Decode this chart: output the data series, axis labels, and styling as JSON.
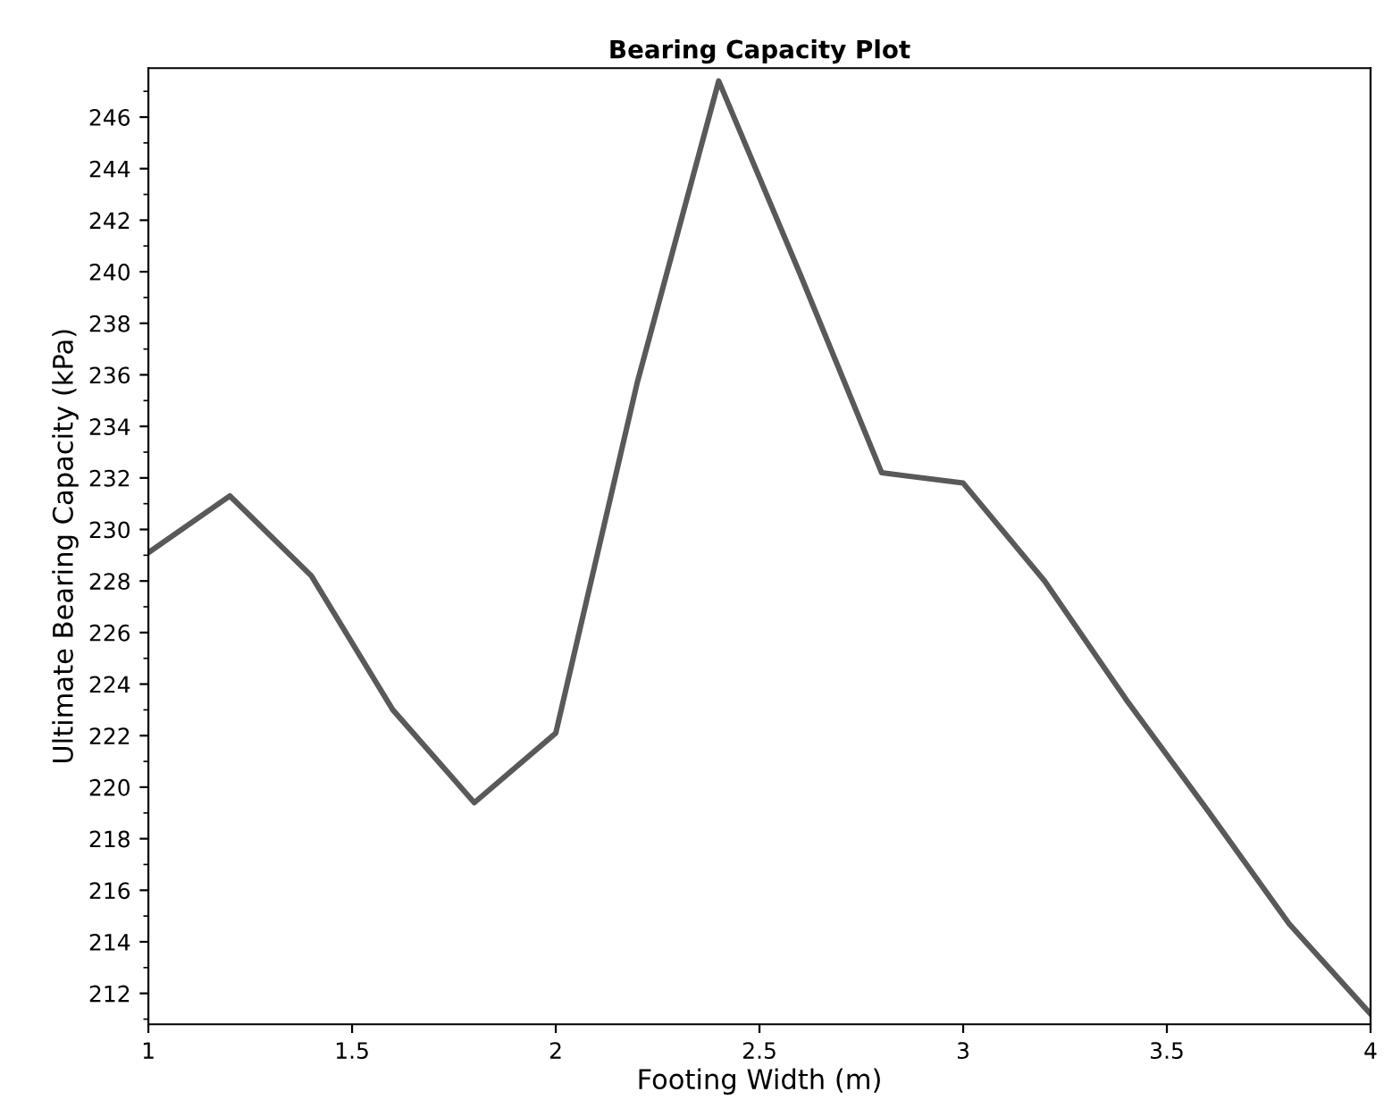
{
  "chart_data": {
    "type": "line",
    "title": "Bearing Capacity Plot",
    "xlabel": "Footing Width (m)",
    "ylabel": "Ultimate Bearing Capacity (kPa)",
    "x": [
      1,
      1.2,
      1.4,
      1.6,
      1.8,
      2,
      2.2,
      2.4,
      2.6,
      2.8,
      3,
      3.2,
      3.4,
      3.6,
      3.8,
      4
    ],
    "series": [
      {
        "color": "#595959",
        "values": [
          229.1,
          231.3,
          228.2,
          223.0,
          219.4,
          222.1,
          235.7,
          247.4,
          239.9,
          232.2,
          231.8,
          228.0,
          223.4,
          219.1,
          214.7,
          211.2
        ]
      }
    ],
    "xlim": [
      1,
      4
    ],
    "xticks": [
      1,
      1.5,
      2,
      2.5,
      3,
      3.5,
      4
    ],
    "ylim": [
      210.8,
      247.9
    ],
    "yticks": [
      212,
      214,
      216,
      218,
      220,
      222,
      224,
      226,
      228,
      230,
      232,
      234,
      236,
      238,
      240,
      242,
      244,
      246
    ],
    "grid": false,
    "legend": false,
    "marker": "none",
    "line_style": "solid"
  }
}
